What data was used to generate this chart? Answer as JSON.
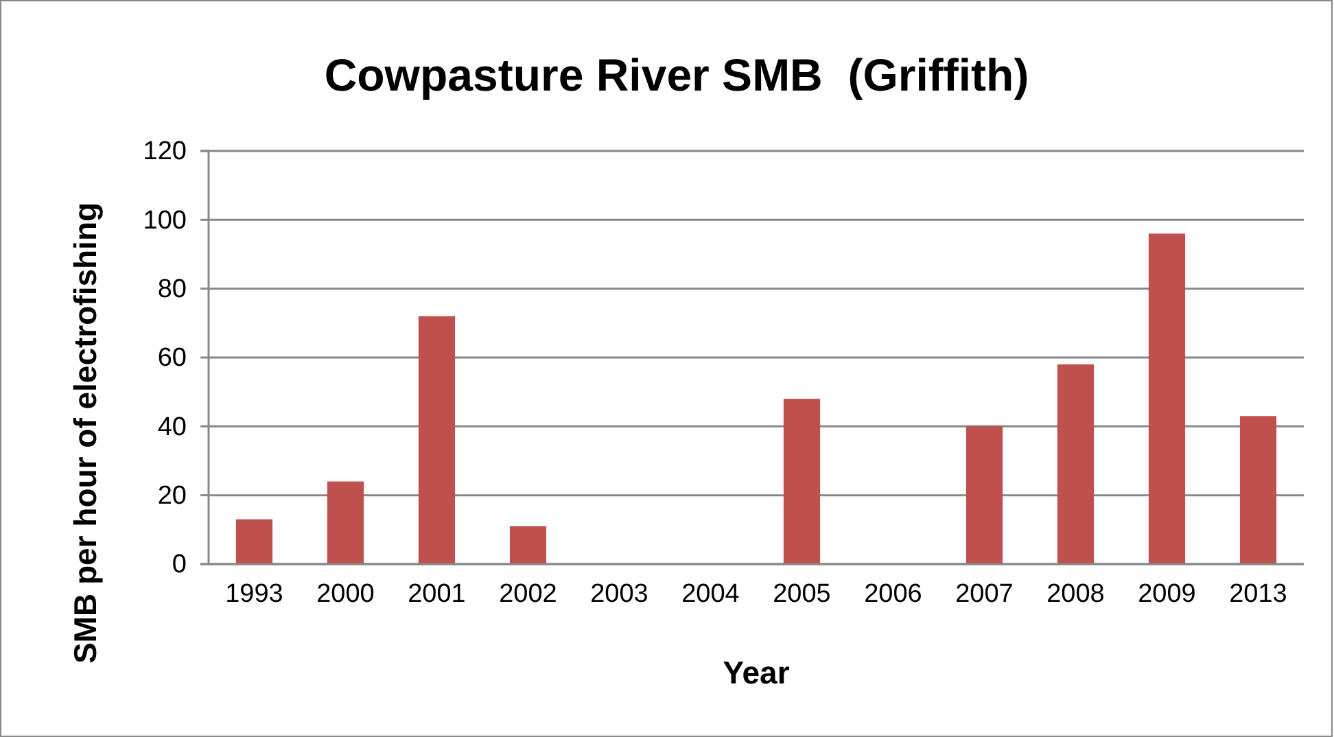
{
  "chart_data": {
    "type": "bar",
    "title": "Cowpasture River SMB  (Griffith)",
    "xlabel": "Year",
    "ylabel": "SMB per hour of electrofishing",
    "categories": [
      "1993",
      "2000",
      "2001",
      "2002",
      "2003",
      "2004",
      "2005",
      "2006",
      "2007",
      "2008",
      "2009",
      "2013"
    ],
    "values": [
      13,
      24,
      72,
      11,
      null,
      null,
      48,
      null,
      40,
      58,
      96,
      43
    ],
    "color": "#c0504d",
    "ylim": [
      0,
      120
    ],
    "yticks": [
      0,
      20,
      40,
      60,
      80,
      100,
      120
    ],
    "grid": "y"
  }
}
